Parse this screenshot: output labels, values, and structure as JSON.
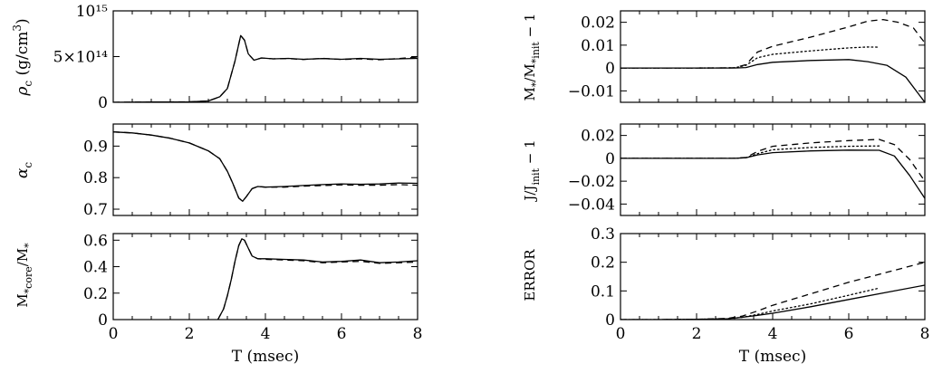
{
  "chart_data": [
    {
      "id": "rho",
      "type": "line",
      "ylabel": "ρ_c (g/cm³)",
      "xlim": [
        0,
        8
      ],
      "ylim": [
        0,
        1000000000000000
      ],
      "yticks": [
        {
          "v": 0,
          "label": "0"
        },
        {
          "v": 500000000000000,
          "label": "5×10¹⁴"
        },
        {
          "v": 1000000000000000,
          "label": "10¹⁵"
        }
      ],
      "xticks": [
        0,
        2,
        4,
        6,
        8
      ],
      "show_xticklabels": false,
      "xlabel": "",
      "series": [
        {
          "style": "solid",
          "x": [
            0,
            1,
            2,
            2.5,
            2.8,
            3.0,
            3.2,
            3.35,
            3.45,
            3.55,
            3.7,
            3.9,
            4.2,
            4.6,
            5.0,
            5.5,
            6.0,
            6.5,
            7.0,
            7.5,
            8.0
          ],
          "y": [
            0,
            3000000000000.0,
            5000000000000.0,
            15000000000000.0,
            60000000000000.0,
            150000000000000.0,
            450000000000000.0,
            730000000000000.0,
            680000000000000.0,
            530000000000000.0,
            460000000000000.0,
            485000000000000.0,
            475000000000000.0,
            480000000000000.0,
            470000000000000.0,
            478000000000000.0,
            470000000000000.0,
            480000000000000.0,
            470000000000000.0,
            475000000000000.0,
            480000000000000.0
          ]
        },
        {
          "style": "dashed",
          "x": [
            0,
            1,
            2,
            2.5,
            2.8,
            3.0,
            3.2,
            3.35,
            3.45,
            3.55,
            3.7,
            3.9,
            4.2,
            4.6,
            5.0,
            5.5,
            6.0,
            6.5,
            7.0,
            7.5,
            8.0
          ],
          "y": [
            0,
            3000000000000.0,
            5000000000000.0,
            15000000000000.0,
            60000000000000.0,
            150000000000000.0,
            450000000000000.0,
            730000000000000.0,
            680000000000000.0,
            530000000000000.0,
            460000000000000.0,
            485000000000000.0,
            475000000000000.0,
            478000000000000.0,
            468000000000000.0,
            480000000000000.0,
            468000000000000.0,
            475000000000000.0,
            465000000000000.0,
            478000000000000.0,
            495000000000000.0
          ]
        }
      ]
    },
    {
      "id": "alpha",
      "type": "line",
      "ylabel": "α_c",
      "xlim": [
        0,
        8
      ],
      "ylim": [
        0.68,
        0.97
      ],
      "yticks": [
        {
          "v": 0.7,
          "label": "0.7"
        },
        {
          "v": 0.8,
          "label": "0.8"
        },
        {
          "v": 0.9,
          "label": "0.9"
        }
      ],
      "xticks": [
        0,
        2,
        4,
        6,
        8
      ],
      "show_xticklabels": false,
      "xlabel": "",
      "series": [
        {
          "style": "solid",
          "x": [
            0,
            0.5,
            1,
            1.5,
            2,
            2.5,
            2.8,
            3.0,
            3.15,
            3.3,
            3.4,
            3.5,
            3.65,
            3.8,
            4.0,
            4.5,
            5.0,
            5.5,
            6.0,
            6.5,
            7.0,
            7.5,
            8.0
          ],
          "y": [
            0.945,
            0.942,
            0.935,
            0.925,
            0.91,
            0.885,
            0.86,
            0.82,
            0.78,
            0.735,
            0.725,
            0.74,
            0.765,
            0.772,
            0.77,
            0.772,
            0.775,
            0.778,
            0.78,
            0.779,
            0.78,
            0.783,
            0.782
          ]
        },
        {
          "style": "dashed",
          "x": [
            0,
            0.5,
            1,
            1.5,
            2,
            2.5,
            2.8,
            3.0,
            3.15,
            3.3,
            3.4,
            3.5,
            3.65,
            3.8,
            4.0,
            4.5,
            5.0,
            5.5,
            6.0,
            6.5,
            7.0,
            7.5,
            8.0
          ],
          "y": [
            0.945,
            0.942,
            0.935,
            0.925,
            0.91,
            0.885,
            0.86,
            0.82,
            0.78,
            0.735,
            0.725,
            0.74,
            0.765,
            0.772,
            0.77,
            0.77,
            0.773,
            0.775,
            0.777,
            0.776,
            0.776,
            0.778,
            0.776
          ]
        }
      ]
    },
    {
      "id": "mcore",
      "type": "line",
      "ylabel": "M*core/M*",
      "xlim": [
        0,
        8
      ],
      "ylim": [
        0,
        0.65
      ],
      "yticks": [
        {
          "v": 0,
          "label": "0"
        },
        {
          "v": 0.2,
          "label": "0.2"
        },
        {
          "v": 0.4,
          "label": "0.4"
        },
        {
          "v": 0.6,
          "label": "0.6"
        }
      ],
      "xticks": [
        0,
        2,
        4,
        6,
        8
      ],
      "show_xticklabels": true,
      "xlabel": "T  (msec)",
      "series": [
        {
          "style": "solid",
          "x": [
            2.75,
            2.9,
            3.0,
            3.1,
            3.2,
            3.3,
            3.38,
            3.45,
            3.55,
            3.65,
            3.8,
            4.0,
            4.5,
            5.0,
            5.5,
            6.0,
            6.5,
            7.0,
            7.5,
            8.0
          ],
          "y": [
            0,
            0.08,
            0.18,
            0.3,
            0.44,
            0.56,
            0.61,
            0.6,
            0.54,
            0.48,
            0.46,
            0.46,
            0.455,
            0.45,
            0.435,
            0.44,
            0.45,
            0.43,
            0.435,
            0.445
          ]
        },
        {
          "style": "dashed",
          "x": [
            2.75,
            2.9,
            3.0,
            3.1,
            3.2,
            3.3,
            3.38,
            3.45,
            3.55,
            3.65,
            3.8,
            4.0,
            4.5,
            5.0,
            5.5,
            6.0,
            6.5,
            7.0,
            7.5,
            8.0
          ],
          "y": [
            0,
            0.08,
            0.18,
            0.3,
            0.44,
            0.56,
            0.61,
            0.6,
            0.54,
            0.48,
            0.46,
            0.455,
            0.45,
            0.445,
            0.43,
            0.435,
            0.44,
            0.425,
            0.43,
            0.435
          ]
        }
      ]
    },
    {
      "id": "mass",
      "type": "line",
      "ylabel": "M*/M*init − 1",
      "xlim": [
        0,
        8
      ],
      "ylim": [
        -0.015,
        0.025
      ],
      "yticks": [
        {
          "v": -0.01,
          "label": "−0.01"
        },
        {
          "v": 0,
          "label": "0"
        },
        {
          "v": 0.01,
          "label": "0.01"
        },
        {
          "v": 0.02,
          "label": "0.02"
        }
      ],
      "xticks": [
        0,
        2,
        4,
        6,
        8
      ],
      "show_xticklabels": false,
      "xlabel": "",
      "series": [
        {
          "style": "solid",
          "x": [
            0,
            1,
            2,
            3,
            3.3,
            3.6,
            4,
            5,
            6,
            6.5,
            7,
            7.5,
            8
          ],
          "y": [
            0,
            0,
            0,
            0,
            0.0002,
            0.0015,
            0.0025,
            0.0033,
            0.0037,
            0.0028,
            0.0012,
            -0.004,
            -0.015
          ]
        },
        {
          "style": "dashed",
          "x": [
            0,
            1,
            2,
            3,
            3.3,
            3.6,
            4,
            5,
            6,
            6.5,
            6.9,
            7.3,
            7.7,
            8
          ],
          "y": [
            0,
            0,
            0,
            0.0001,
            0.0015,
            0.007,
            0.0095,
            0.0135,
            0.018,
            0.0205,
            0.0212,
            0.02,
            0.0175,
            0.011
          ]
        },
        {
          "style": "dotted",
          "x": [
            0,
            1,
            2,
            3,
            3.3,
            3.6,
            4,
            5,
            6,
            6.5,
            6.8
          ],
          "y": [
            0,
            0,
            0,
            0.0001,
            0.0012,
            0.0045,
            0.006,
            0.0075,
            0.0088,
            0.0092,
            0.0091
          ]
        }
      ]
    },
    {
      "id": "angmom",
      "type": "line",
      "ylabel": "J/Jinit − 1",
      "xlim": [
        0,
        8
      ],
      "ylim": [
        -0.05,
        0.03
      ],
      "yticks": [
        {
          "v": -0.04,
          "label": "−0.04"
        },
        {
          "v": -0.02,
          "label": "−0.02"
        },
        {
          "v": 0,
          "label": "0"
        },
        {
          "v": 0.02,
          "label": "0.02"
        }
      ],
      "xticks": [
        0,
        2,
        4,
        6,
        8
      ],
      "show_xticklabels": false,
      "xlabel": "",
      "series": [
        {
          "style": "solid",
          "x": [
            0,
            1,
            2,
            3,
            3.3,
            3.6,
            4,
            5,
            6,
            6.8,
            7.2,
            7.6,
            8
          ],
          "y": [
            0,
            0,
            0,
            0,
            0.0005,
            0.003,
            0.005,
            0.0065,
            0.0072,
            0.007,
            0.002,
            -0.015,
            -0.035
          ]
        },
        {
          "style": "dashed",
          "x": [
            0,
            1,
            2,
            3,
            3.3,
            3.6,
            4,
            5,
            6,
            6.8,
            7.2,
            7.6,
            8
          ],
          "y": [
            0,
            0,
            0,
            0,
            0.0008,
            0.006,
            0.0105,
            0.0135,
            0.0155,
            0.0165,
            0.012,
            -0.001,
            -0.02
          ]
        },
        {
          "style": "dotted",
          "x": [
            0,
            1,
            2,
            3,
            3.3,
            3.6,
            4,
            5,
            6,
            6.8
          ],
          "y": [
            0,
            0,
            0,
            0,
            0.0006,
            0.004,
            0.0075,
            0.0095,
            0.0105,
            0.0108
          ]
        }
      ]
    },
    {
      "id": "error",
      "type": "line",
      "ylabel": "ERROR",
      "xlim": [
        0,
        8
      ],
      "ylim": [
        0,
        0.3
      ],
      "yticks": [
        {
          "v": 0,
          "label": "0"
        },
        {
          "v": 0.1,
          "label": "0.1"
        },
        {
          "v": 0.2,
          "label": "0.2"
        },
        {
          "v": 0.3,
          "label": "0.3"
        }
      ],
      "xticks": [
        0,
        2,
        4,
        6,
        8
      ],
      "show_xticklabels": true,
      "xlabel": "T  (msec)",
      "series": [
        {
          "style": "solid",
          "x": [
            0,
            1,
            2,
            2.8,
            3.2,
            3.6,
            4,
            5,
            6,
            7,
            8
          ],
          "y": [
            0,
            0,
            0.001,
            0.003,
            0.008,
            0.015,
            0.022,
            0.045,
            0.07,
            0.095,
            0.12
          ]
        },
        {
          "style": "dashed",
          "x": [
            0,
            1,
            2,
            2.8,
            3.2,
            3.6,
            4,
            5,
            6,
            7,
            8
          ],
          "y": [
            0,
            0,
            0.001,
            0.004,
            0.012,
            0.03,
            0.05,
            0.09,
            0.13,
            0.165,
            0.2
          ]
        },
        {
          "style": "dotted",
          "x": [
            0,
            1,
            2,
            2.8,
            3.2,
            3.6,
            4,
            5,
            6,
            6.8
          ],
          "y": [
            0,
            0,
            0.001,
            0.003,
            0.008,
            0.018,
            0.03,
            0.055,
            0.085,
            0.11
          ]
        }
      ]
    }
  ]
}
